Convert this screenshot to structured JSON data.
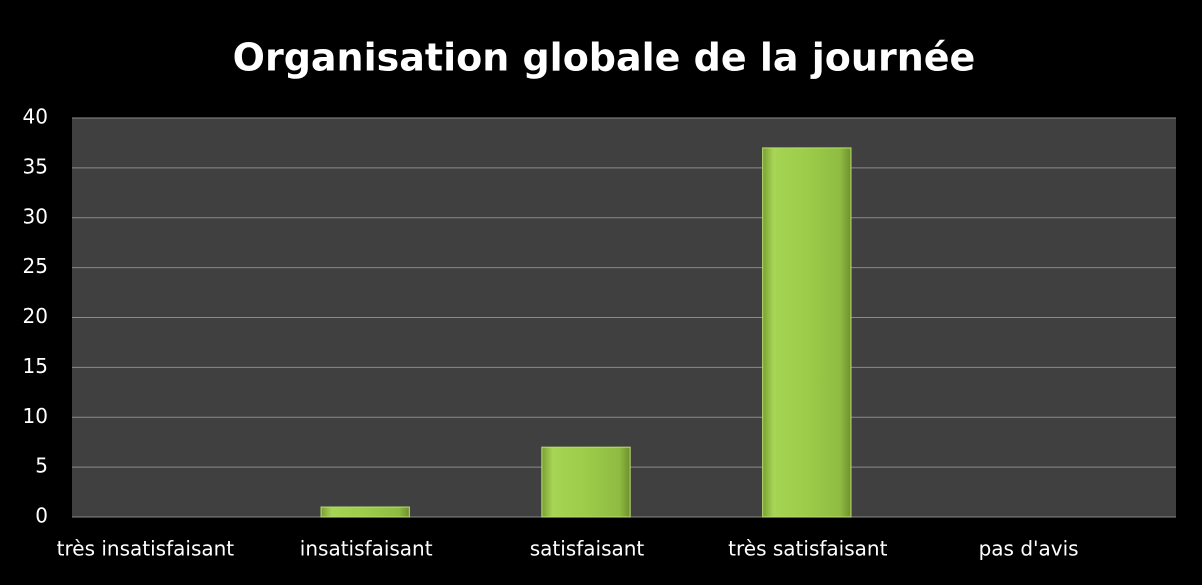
{
  "chart_data": {
    "type": "bar",
    "title": "Organisation globale de la journée",
    "categories": [
      "très insatisfaisant",
      "insatisfaisant",
      "satisfaisant",
      "très satisfaisant",
      "pas d'avis"
    ],
    "values": [
      0,
      1,
      7,
      37,
      0
    ],
    "color": "#9ccc4a",
    "ylim": [
      0,
      40
    ],
    "yticks": [
      0,
      5,
      10,
      15,
      20,
      25,
      30,
      35,
      40
    ],
    "grid": true
  }
}
